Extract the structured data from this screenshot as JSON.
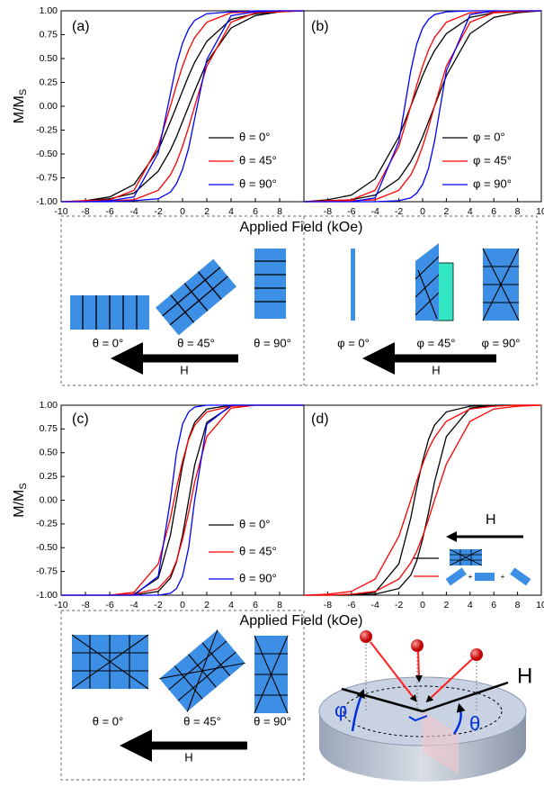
{
  "chart_data": [
    {
      "type": "line",
      "label": "(a)",
      "ylabel": "M/M",
      "ylabel_sub": "S",
      "xlabel": "Applied Field (kOe)",
      "xlim": [
        -10,
        10
      ],
      "ylim": [
        -1,
        1
      ],
      "xticks": [
        -10,
        -8,
        -6,
        -4,
        -2,
        0,
        2,
        4,
        6,
        8
      ],
      "yticks": [
        {
          "value": -1,
          "label": "-1.00"
        },
        {
          "value": -0.75,
          "label": "-0.75"
        },
        {
          "value": -0.5,
          "label": "-0.50"
        },
        {
          "value": -0.25,
          "label": "-0.25"
        },
        {
          "value": 0,
          "label": "0.00"
        },
        {
          "value": 0.25,
          "label": "0.25"
        },
        {
          "value": 0.5,
          "label": "0.50"
        },
        {
          "value": 0.75,
          "label": "0.75"
        },
        {
          "value": 1,
          "label": "1.00"
        }
      ],
      "x": [
        -10,
        -8,
        -6,
        -4,
        -2,
        -1,
        -0.5,
        0,
        0.5,
        1,
        2,
        4,
        6,
        8,
        10,
        8,
        6,
        4,
        2,
        1,
        0.5,
        0,
        -0.5,
        -1,
        -2,
        -4,
        -6,
        -8,
        -10
      ],
      "series": [
        {
          "name": "θ = 0°",
          "color": "#000000",
          "values": [
            -1,
            -0.99,
            -0.97,
            -0.91,
            -0.68,
            -0.46,
            -0.32,
            -0.16,
            0,
            0.16,
            0.46,
            0.82,
            0.95,
            0.99,
            1,
            0.99,
            0.97,
            0.91,
            0.68,
            0.46,
            0.32,
            0.16,
            0,
            -0.16,
            -0.46,
            -0.82,
            -0.95,
            -0.99,
            -1
          ]
        },
        {
          "name": "θ = 45°",
          "color": "#ff0000",
          "values": [
            -1,
            -1,
            -0.99,
            -0.98,
            -0.88,
            -0.72,
            -0.59,
            -0.42,
            -0.22,
            0,
            0.42,
            0.88,
            0.98,
            0.99,
            1,
            1,
            0.99,
            0.98,
            0.88,
            0.72,
            0.59,
            0.42,
            0.22,
            0,
            -0.42,
            -0.88,
            -0.98,
            -0.99,
            -1
          ]
        },
        {
          "name": "θ = 90°",
          "color": "#0000ff",
          "values": [
            -1,
            -1,
            -1,
            -0.99,
            -0.97,
            -0.9,
            -0.81,
            -0.66,
            -0.44,
            -0.13,
            0.49,
            0.95,
            0.99,
            1,
            1,
            1,
            1,
            0.99,
            0.97,
            0.9,
            0.81,
            0.66,
            0.44,
            0.13,
            -0.49,
            -0.95,
            -0.99,
            -1,
            -1
          ]
        }
      ]
    },
    {
      "type": "line",
      "label": "(b)",
      "xlim": [
        -10,
        10
      ],
      "ylim": [
        -1,
        1
      ],
      "xticks": [
        -8,
        -6,
        -4,
        -2,
        0,
        2,
        4,
        6,
        8,
        10
      ],
      "x": [
        -10,
        -8,
        -6,
        -4,
        -2,
        -1,
        -0.5,
        0,
        0.5,
        1,
        2,
        4,
        6,
        8,
        10,
        8,
        6,
        4,
        2,
        1,
        0.5,
        0,
        -0.5,
        -1,
        -2,
        -4,
        -6,
        -8,
        -10
      ],
      "series": [
        {
          "name": "φ = 0°",
          "color": "#000000",
          "values": [
            -1,
            -0.99,
            -0.98,
            -0.93,
            -0.76,
            -0.58,
            -0.46,
            -0.32,
            -0.16,
            0,
            0.32,
            0.76,
            0.93,
            0.98,
            1,
            0.99,
            0.98,
            0.93,
            0.76,
            0.58,
            0.46,
            0.32,
            0.16,
            0,
            -0.32,
            -0.76,
            -0.93,
            -0.98,
            -1
          ]
        },
        {
          "name": "φ = 45°",
          "color": "#ff0000",
          "values": [
            -1,
            -1,
            -0.99,
            -0.98,
            -0.88,
            -0.72,
            -0.59,
            -0.42,
            -0.22,
            0,
            0.42,
            0.88,
            0.98,
            0.99,
            1,
            1,
            0.99,
            0.98,
            0.88,
            0.72,
            0.59,
            0.42,
            0.22,
            0,
            -0.42,
            -0.88,
            -0.98,
            -0.99,
            -1
          ]
        },
        {
          "name": "φ = 90°",
          "color": "#0000ff",
          "values": [
            -1,
            -1,
            -1,
            -1,
            -0.99,
            -0.96,
            -0.91,
            -0.82,
            -0.65,
            -0.37,
            0.37,
            0.96,
            1,
            1,
            1,
            1,
            1,
            1,
            0.99,
            0.96,
            0.91,
            0.82,
            0.65,
            0.37,
            -0.37,
            -0.96,
            -1,
            -1,
            -1
          ]
        }
      ]
    },
    {
      "type": "line",
      "label": "(c)",
      "ylabel": "M/M",
      "ylabel_sub": "S",
      "xlabel": "Applied Field (kOe)",
      "xlim": [
        -10,
        10
      ],
      "ylim": [
        -1,
        1
      ],
      "xticks": [
        -10,
        -8,
        -6,
        -4,
        -2,
        0,
        2,
        4,
        6,
        8
      ],
      "yticks": [
        {
          "value": -1,
          "label": "-1.00"
        },
        {
          "value": -0.75,
          "label": "-0.75"
        },
        {
          "value": -0.5,
          "label": "-0.50"
        },
        {
          "value": -0.25,
          "label": "-0.25"
        },
        {
          "value": 0,
          "label": "0.00"
        },
        {
          "value": 0.25,
          "label": "0.25"
        },
        {
          "value": 0.5,
          "label": "0.50"
        },
        {
          "value": 0.75,
          "label": "0.75"
        },
        {
          "value": 1,
          "label": "1.00"
        }
      ],
      "x": [
        -10,
        -8,
        -6,
        -4,
        -2,
        -1,
        -0.5,
        0,
        0.5,
        1,
        2,
        4,
        6,
        8,
        10,
        8,
        6,
        4,
        2,
        1,
        0.5,
        0,
        -0.5,
        -1,
        -2,
        -4,
        -6,
        -8,
        -10
      ],
      "series": [
        {
          "name": "θ = 0°",
          "color": "#000000",
          "values": [
            -1,
            -1,
            -1,
            -1,
            -0.96,
            -0.82,
            -0.65,
            -0.37,
            0,
            0.37,
            0.82,
            0.99,
            1,
            1,
            1,
            1,
            1,
            1,
            0.96,
            0.82,
            0.65,
            0.37,
            0,
            -0.37,
            -0.82,
            -0.99,
            -1,
            -1,
            -1
          ]
        },
        {
          "name": "θ = 45°",
          "color": "#ff0000",
          "values": [
            -1,
            -1,
            -1,
            -0.99,
            -0.93,
            -0.79,
            -0.64,
            -0.41,
            -0.13,
            0.19,
            0.67,
            0.97,
            1,
            1,
            1,
            1,
            1,
            0.99,
            0.93,
            0.79,
            0.64,
            0.41,
            0.13,
            -0.19,
            -0.67,
            -0.97,
            -1,
            -1,
            -1
          ]
        },
        {
          "name": "θ = 90°",
          "color": "#0000ff",
          "values": [
            -1,
            -1,
            -1,
            -1,
            -1,
            -0.98,
            -0.93,
            -0.8,
            -0.5,
            0,
            0.8,
            1,
            1,
            1,
            1,
            1,
            1,
            1,
            1,
            0.98,
            0.93,
            0.8,
            0.5,
            0,
            -0.8,
            -1,
            -1,
            -1,
            -1
          ]
        }
      ]
    },
    {
      "type": "line",
      "label": "(d)",
      "annotation": "H",
      "xlim": [
        -10,
        10
      ],
      "ylim": [
        -1,
        1
      ],
      "xticks": [
        -8,
        -6,
        -4,
        -2,
        0,
        2,
        4,
        6,
        8,
        10
      ],
      "x": [
        -10,
        -8,
        -6,
        -4,
        -2,
        -1,
        -0.5,
        0,
        0.5,
        1,
        2,
        4,
        6,
        8,
        10,
        8,
        6,
        4,
        2,
        1,
        0.5,
        0,
        -0.5,
        -1,
        -2,
        -4,
        -6,
        -8,
        -10
      ],
      "series": [
        {
          "color": "#000000",
          "values": [
            -1,
            -1,
            -1,
            -0.99,
            -0.93,
            -0.79,
            -0.64,
            -0.41,
            -0.13,
            0.19,
            0.67,
            0.97,
            1,
            1,
            1,
            1,
            1,
            0.99,
            0.93,
            0.79,
            0.64,
            0.41,
            0.13,
            -0.19,
            -0.67,
            -0.97,
            -1,
            -1,
            -1
          ]
        },
        {
          "color": "#ff0000",
          "values": [
            -1,
            -1,
            -0.99,
            -0.96,
            -0.83,
            -0.66,
            -0.54,
            -0.38,
            -0.2,
            0,
            0.38,
            0.83,
            0.96,
            0.99,
            1,
            1,
            0.99,
            0.96,
            0.83,
            0.66,
            0.54,
            0.38,
            0.2,
            0,
            -0.38,
            -0.83,
            -0.96,
            -0.99,
            -1
          ]
        }
      ]
    }
  ],
  "schematics": [
    {
      "labels": [
        "θ = 0°",
        "θ = 45°",
        "θ = 90°"
      ],
      "arrow": "H"
    },
    {
      "labels": [
        "φ = 0°",
        "φ = 45°",
        "φ = 90°"
      ],
      "arrow": "H"
    },
    {
      "labels": [
        "θ = 0°",
        "θ = 45°",
        "θ = 90°"
      ],
      "arrow": "H"
    }
  ],
  "geometry": {
    "phi": "φ",
    "theta": "θ",
    "field": "H"
  }
}
